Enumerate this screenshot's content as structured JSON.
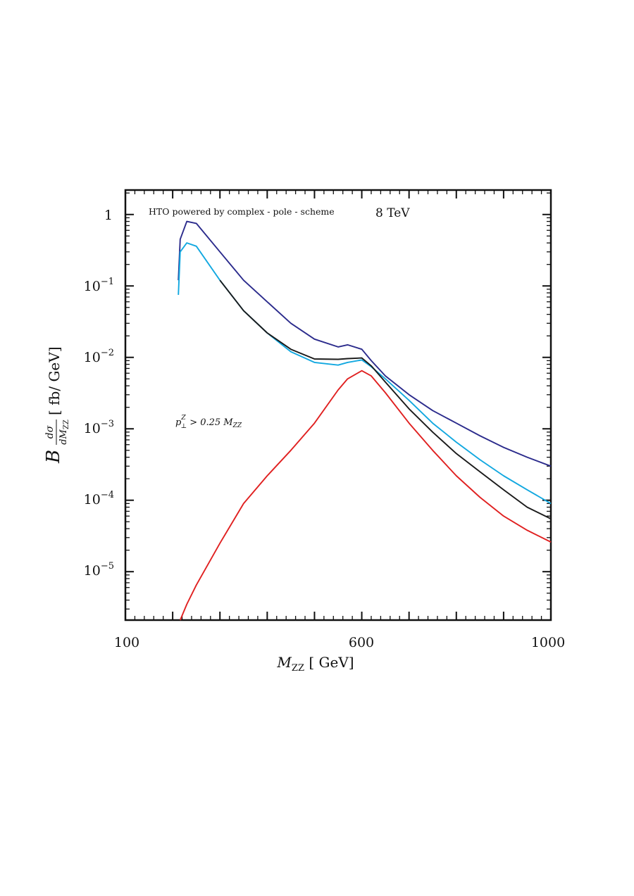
{
  "chart_data": {
    "type": "line",
    "annotations": {
      "hto_label": "HTO powered by complex - pole - scheme",
      "energy_label": "8 TeV",
      "cut_label_p": "p",
      "cut_label_sup": "Z",
      "cut_label_sub": "⊥",
      "cut_label_rest": " > 0.25 M",
      "cut_label_sub2": "ZZ"
    },
    "xlabel": {
      "main": "M",
      "sub": "ZZ",
      "rest": " [ GeV]"
    },
    "ylabel": {
      "b": "B",
      "num": "dσ",
      "den_main": "dM",
      "den_sub": "ZZ",
      "rest": "[ fb/ GeV]"
    },
    "x_ticks": [
      "100",
      "600",
      "1000"
    ],
    "y_ticks": [
      {
        "base": "1",
        "exp": ""
      },
      {
        "base": "10",
        "exp": "−1"
      },
      {
        "base": "10",
        "exp": "−2"
      },
      {
        "base": "10",
        "exp": "−3"
      },
      {
        "base": "10",
        "exp": "−4"
      },
      {
        "base": "10",
        "exp": "−5"
      }
    ],
    "x_scale": "linear",
    "y_scale": "log",
    "xlim": [
      100,
      1000
    ],
    "ylim": [
      2.1e-06,
      2.2
    ],
    "grid": false,
    "x": [
      212,
      216,
      230,
      250,
      300,
      350,
      400,
      450,
      500,
      550,
      570,
      600,
      620,
      650,
      700,
      750,
      800,
      850,
      900,
      950,
      1000
    ],
    "series": [
      {
        "color": "#2b2b8c",
        "values": [
          0.12,
          0.45,
          0.8,
          0.75,
          0.3,
          0.12,
          0.06,
          0.03,
          0.018,
          0.014,
          0.015,
          0.013,
          0.009,
          0.0055,
          0.003,
          0.0018,
          0.0012,
          0.0008,
          0.00055,
          0.0004,
          0.0003
        ]
      },
      {
        "color": "#12a8e0",
        "values": [
          0.075,
          0.3,
          0.4,
          0.36,
          0.12,
          0.045,
          0.022,
          0.012,
          0.0085,
          0.0078,
          0.0085,
          0.0092,
          0.0074,
          0.005,
          0.0025,
          0.0012,
          0.00065,
          0.00037,
          0.00022,
          0.00014,
          9e-05
        ]
      },
      {
        "color": "#1a1a1a",
        "values": [
          null,
          null,
          null,
          null,
          0.12,
          0.045,
          0.022,
          0.013,
          0.0095,
          0.0094,
          0.0096,
          0.0098,
          0.0076,
          0.0045,
          0.0019,
          0.0009,
          0.00045,
          0.00025,
          0.00014,
          8e-05,
          5.5e-05
        ]
      },
      {
        "color": "#e02020",
        "values": [
          null,
          2.1e-06,
          3.5e-06,
          6.5e-06,
          2.5e-05,
          9e-05,
          0.00022,
          0.0005,
          0.0012,
          0.0035,
          0.005,
          0.0065,
          0.0055,
          0.0032,
          0.0012,
          0.0005,
          0.00022,
          0.00011,
          6e-05,
          3.8e-05,
          2.6e-05
        ]
      }
    ]
  }
}
